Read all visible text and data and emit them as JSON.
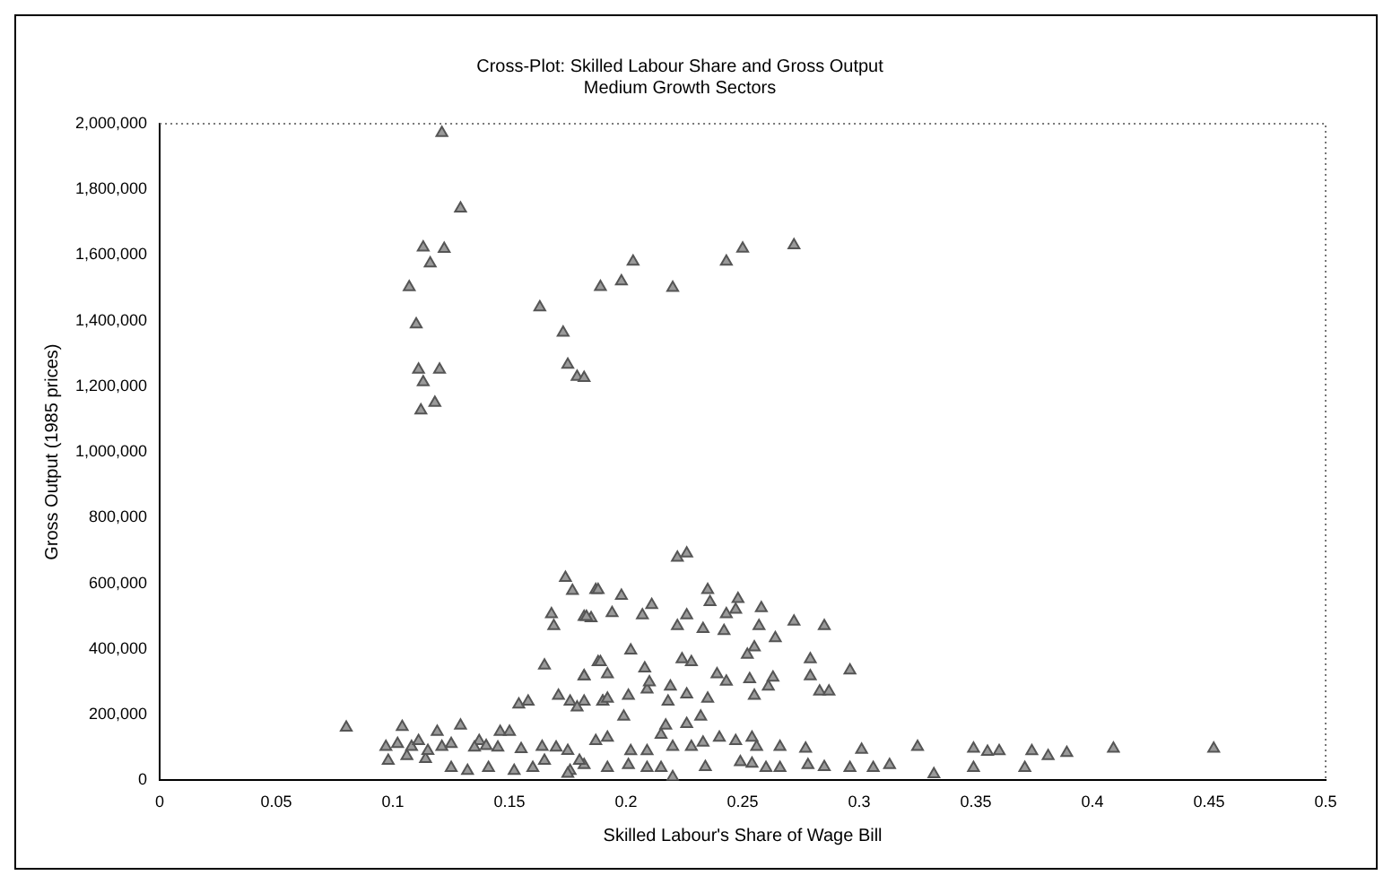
{
  "chart_data": {
    "type": "scatter",
    "title": "Cross-Plot: Skilled Labour Share and Gross Output",
    "subtitle": "Medium Growth Sectors",
    "xlabel": "Skilled Labour's Share of Wage Bill",
    "ylabel": "Gross Output (1985 prices)",
    "x": [
      0.121,
      0.129,
      0.113,
      0.122,
      0.116,
      0.107,
      0.11,
      0.111,
      0.12,
      0.113,
      0.118,
      0.112,
      0.163,
      0.173,
      0.175,
      0.179,
      0.182,
      0.189,
      0.198,
      0.203,
      0.22,
      0.243,
      0.25,
      0.272,
      0.08,
      0.097,
      0.098,
      0.102,
      0.104,
      0.106,
      0.108,
      0.111,
      0.114,
      0.119,
      0.121,
      0.125,
      0.125,
      0.129,
      0.132,
      0.137,
      0.141,
      0.146,
      0.15,
      0.152,
      0.154,
      0.158,
      0.16,
      0.164,
      0.165,
      0.168,
      0.169,
      0.171,
      0.174,
      0.177,
      0.176,
      0.176,
      0.182,
      0.182,
      0.185,
      0.187,
      0.188,
      0.19,
      0.222,
      0.226,
      0.188,
      0.198,
      0.183,
      0.194,
      0.207,
      0.211,
      0.235,
      0.236,
      0.226,
      0.222,
      0.233,
      0.242,
      0.243,
      0.248,
      0.247,
      0.258,
      0.257,
      0.264,
      0.272,
      0.285,
      0.255,
      0.252,
      0.279,
      0.279,
      0.296,
      0.283,
      0.287,
      0.263,
      0.261,
      0.253,
      0.255,
      0.239,
      0.243,
      0.235,
      0.232,
      0.226,
      0.228,
      0.224,
      0.219,
      0.218,
      0.217,
      0.215,
      0.226,
      0.22,
      0.228,
      0.233,
      0.24,
      0.247,
      0.254,
      0.256,
      0.266,
      0.277,
      0.301,
      0.325,
      0.349,
      0.355,
      0.36,
      0.374,
      0.381,
      0.389,
      0.409,
      0.452,
      0.332,
      0.349,
      0.371,
      0.313,
      0.306,
      0.296,
      0.285,
      0.278,
      0.266,
      0.26,
      0.249,
      0.254,
      0.234,
      0.22,
      0.215,
      0.209,
      0.201,
      0.192,
      0.182,
      0.187,
      0.192,
      0.202,
      0.209,
      0.182,
      0.179,
      0.19,
      0.192,
      0.199,
      0.201,
      0.209,
      0.208,
      0.21,
      0.202,
      0.189,
      0.192,
      0.182,
      0.17,
      0.175,
      0.18,
      0.175,
      0.165,
      0.155,
      0.145,
      0.14,
      0.135,
      0.115
    ],
    "values": [
      1972000,
      1742000,
      1623000,
      1619000,
      1575000,
      1502000,
      1389000,
      1251000,
      1251000,
      1213000,
      1150000,
      1127000,
      1441000,
      1364000,
      1266000,
      1229000,
      1226000,
      1503000,
      1520000,
      1580000,
      1500000,
      1580000,
      1620000,
      1630000,
      161000,
      102000,
      60000,
      111000,
      163000,
      74000,
      102000,
      120000,
      65000,
      148000,
      102000,
      38000,
      111000,
      167000,
      29000,
      120000,
      38000,
      148000,
      148000,
      29000,
      231000,
      240000,
      38000,
      102000,
      350000,
      506000,
      470000,
      258000,
      617000,
      577000,
      240000,
      29000,
      317000,
      498000,
      494000,
      580000,
      360000,
      240000,
      678000,
      691000,
      580000,
      562000,
      498000,
      510000,
      503000,
      534000,
      580000,
      543000,
      503000,
      470000,
      461000,
      455000,
      506000,
      553000,
      520000,
      525000,
      470000,
      433000,
      484000,
      470000,
      405000,
      383000,
      369000,
      317000,
      335000,
      271000,
      271000,
      313000,
      286000,
      308000,
      258000,
      323000,
      301000,
      249000,
      194000,
      262000,
      360000,
      369000,
      286000,
      240000,
      167000,
      139000,
      172000,
      102000,
      102000,
      115000,
      130000,
      120000,
      130000,
      102000,
      102000,
      97000,
      93000,
      102000,
      97000,
      87000,
      89000,
      89000,
      74000,
      84000,
      97000,
      97000,
      19000,
      38000,
      38000,
      47000,
      38000,
      38000,
      41000,
      47000,
      38000,
      38000,
      56000,
      51000,
      41000,
      10000,
      38000,
      38000,
      47000,
      38000,
      47000,
      120000,
      130000,
      89000,
      89000,
      240000,
      222000,
      240000,
      249000,
      194000,
      258000,
      277000,
      341000,
      299000,
      396000,
      360000,
      323000,
      317000,
      100000,
      90000,
      60000,
      20000,
      60000,
      95000,
      100000,
      105000,
      100000,
      90000
    ],
    "color": "#555555",
    "marker": "triangle",
    "grid": false,
    "legend": false,
    "xlim": [
      0,
      0.5
    ],
    "xticks": [
      0,
      0.05,
      0.1,
      0.15,
      0.2,
      0.25,
      0.3,
      0.35,
      0.4,
      0.45,
      0.5
    ],
    "ylim": [
      0,
      2000000
    ],
    "yticks": [
      0,
      {
        "value": 200000,
        "label": "200,000"
      },
      {
        "value": 400000,
        "label": "400,000"
      },
      {
        "value": 600000,
        "label": "600,000"
      },
      {
        "value": 800000,
        "label": "800,000"
      },
      {
        "value": 1000000,
        "label": "1,000,000"
      },
      {
        "value": 1200000,
        "label": "1,200,000"
      },
      {
        "value": 1400000,
        "label": "1,400,000"
      },
      {
        "value": 1600000,
        "label": "1,600,000"
      },
      {
        "value": 1800000,
        "label": "1,800,000"
      },
      {
        "value": 2000000,
        "label": "2,000,000"
      }
    ]
  }
}
